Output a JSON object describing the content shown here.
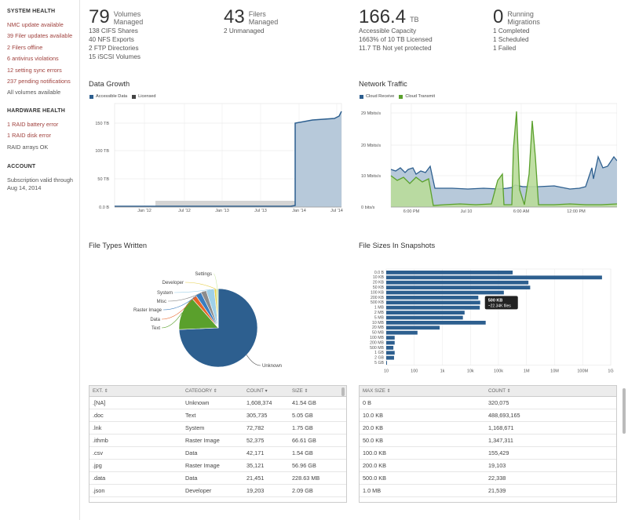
{
  "sidebar": {
    "system_health": {
      "heading": "SYSTEM HEALTH",
      "items": [
        {
          "label": "NMC update available",
          "alert": true
        },
        {
          "label": "39 Filer updates available",
          "alert": true
        },
        {
          "label": "2 Filers offline",
          "alert": true
        },
        {
          "label": "6 antivirus violations",
          "alert": true
        },
        {
          "label": "12 setting sync errors",
          "alert": true
        },
        {
          "label": "237 pending notifications",
          "alert": true
        },
        {
          "label": "All volumes available",
          "alert": false
        }
      ]
    },
    "hardware_health": {
      "heading": "HARDWARE HEALTH",
      "items": [
        {
          "label": "1 RAID battery error",
          "alert": true
        },
        {
          "label": "1 RAID disk error",
          "alert": true
        },
        {
          "label": "RAID arrays OK",
          "alert": false
        }
      ]
    },
    "account": {
      "heading": "ACCOUNT",
      "line1": "Subscription valid through",
      "line2": "Aug 14, 2014"
    }
  },
  "stats": {
    "volumes": {
      "value": "79",
      "unit1": "Volumes",
      "unit2": "Managed",
      "lines": [
        "138 CIFS Shares",
        "40 NFS Exports",
        "2 FTP Directories",
        "15 iSCSI Volumes"
      ]
    },
    "filers": {
      "value": "43",
      "unit1": "Filers",
      "unit2": "Managed",
      "lines": [
        "2 Unmanaged"
      ]
    },
    "capacity": {
      "value": "166.4",
      "unit1": "TB",
      "lines": [
        "Accessible Capacity",
        "1663% of 10 TB Licensed",
        "11.7 TB Not yet protected"
      ]
    },
    "migrations": {
      "value": "0",
      "unit1": "Running",
      "unit2": "Migrations",
      "lines": [
        "1 Completed",
        "1 Scheduled",
        "1 Failed"
      ]
    }
  },
  "colors": {
    "blue": "#2d5f8f",
    "blue_fill": "#b7c9da",
    "green": "#5aa02c",
    "green_fill": "#b9dc9a",
    "gray_fill": "#d4d4d4",
    "alert_red": "#a0413d"
  },
  "data_growth": {
    "title": "Data Growth",
    "legend": [
      "Accessible Data",
      "Licensed"
    ],
    "yticks": [
      "150 TB",
      "100 TB",
      "50 TB",
      "0.0 B"
    ],
    "xticks": [
      "Jan '12",
      "Jul '12",
      "Jan '13",
      "Jul '13",
      "Jan '14",
      "Jul '14"
    ]
  },
  "network": {
    "title": "Network Traffic",
    "legend": [
      "Cloud Receive",
      "Cloud Transmit"
    ],
    "yticks": [
      "29 Mbits/s",
      "20 Mbits/s",
      "10 Mbits/s",
      "0 bits/s"
    ],
    "xticks": [
      "6:00 PM",
      "Jul 10",
      "6:00 AM",
      "12:00 PM"
    ]
  },
  "file_types": {
    "title": "File Types Written",
    "slices": [
      {
        "label": "Unknown",
        "value": 1608374,
        "color": "#2d5f8f"
      },
      {
        "label": "Text",
        "value": 305735,
        "color": "#5aa02c"
      },
      {
        "label": "Data",
        "value": 42171,
        "color": "#e8662a"
      },
      {
        "label": "Raster Image",
        "value": 52375,
        "color": "#3a7dbf"
      },
      {
        "label": "Misc",
        "value": 48000,
        "color": "#8c8c8c"
      },
      {
        "label": "System",
        "value": 72782,
        "color": "#9fd0e8"
      },
      {
        "label": "Developer",
        "value": 19203,
        "color": "#e5cf4a"
      },
      {
        "label": "Settings",
        "value": 16000,
        "color": "#c8e6a0"
      }
    ]
  },
  "file_sizes": {
    "title": "File Sizes In Snapshots",
    "categories": [
      "0.0 B",
      "10 KB",
      "20 KB",
      "50 KB",
      "100 KB",
      "200 KB",
      "500 KB",
      "1 MB",
      "2 MB",
      "5 MB",
      "10 MB",
      "20 MB",
      "50 MB",
      "100 MB",
      "200 MB",
      "500 MB",
      "1 GB",
      "2 GB",
      "5 GB"
    ],
    "values": [
      320075,
      488693165,
      1168671,
      1347311,
      155429,
      19103,
      22338,
      21539,
      6200,
      5400,
      35000,
      800,
      130,
      20,
      20,
      18,
      20,
      19,
      5
    ],
    "xticks": [
      "10",
      "100",
      "1k",
      "10k",
      "100k",
      "1M",
      "10M",
      "100M",
      "1G"
    ],
    "tooltip": {
      "label": "500 KB",
      "value": "~22.34K files"
    }
  },
  "file_types_table": {
    "columns": [
      "EXT. ⇕",
      "CATEGORY ⇕",
      "COUNT ▾",
      "SIZE ⇕"
    ],
    "rows": [
      [
        ".[NA]",
        "Unknown",
        "1,608,374",
        "41.54 GB"
      ],
      [
        ".doc",
        "Text",
        "305,735",
        "5.05 GB"
      ],
      [
        ".lnk",
        "System",
        "72,782",
        "1.75 GB"
      ],
      [
        ".ithmb",
        "Raster Image",
        "52,375",
        "66.61 GB"
      ],
      [
        ".csv",
        "Data",
        "42,171",
        "1.54 GB"
      ],
      [
        ".jpg",
        "Raster Image",
        "35,121",
        "56.96 GB"
      ],
      [
        ".data",
        "Data",
        "21,451",
        "228.63 MB"
      ],
      [
        ".json",
        "Developer",
        "19,203",
        "2.09 GB"
      ]
    ]
  },
  "file_sizes_table": {
    "columns": [
      "MAX SIZE ⇕",
      "COUNT ⇕"
    ],
    "rows": [
      [
        "0 B",
        "320,075"
      ],
      [
        "10.0 KB",
        "488,693,165"
      ],
      [
        "20.0 KB",
        "1,168,671"
      ],
      [
        "50.0 KB",
        "1,347,311"
      ],
      [
        "100.0 KB",
        "155,429"
      ],
      [
        "200.0 KB",
        "19,103"
      ],
      [
        "500.0 KB",
        "22,338"
      ],
      [
        "1.0 MB",
        "21,539"
      ]
    ]
  }
}
